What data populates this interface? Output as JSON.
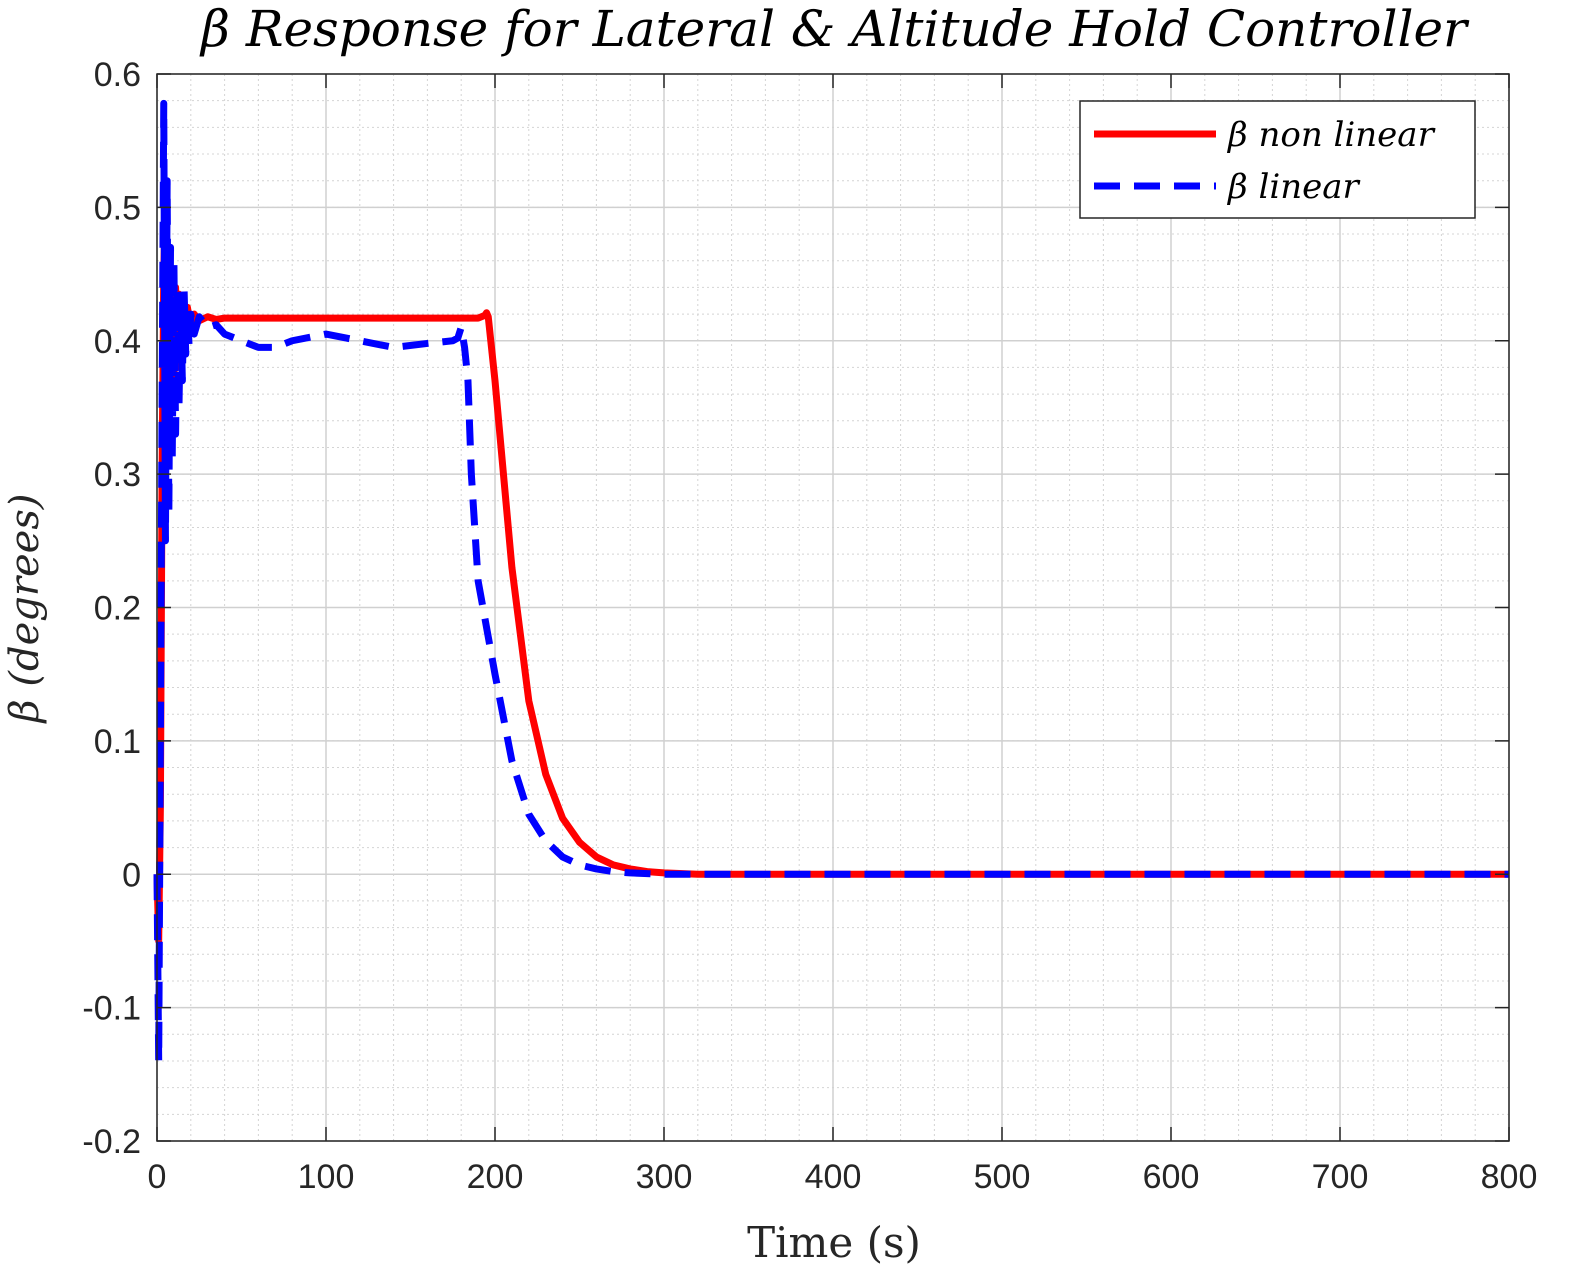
{
  "chart_data": {
    "type": "line",
    "title": "β Response for Lateral & Altitude Hold Controller",
    "xlabel": "Time (s)",
    "ylabel": "β (degrees)",
    "xlim": [
      0,
      800
    ],
    "ylim": [
      -0.2,
      0.6
    ],
    "xticks": [
      0,
      100,
      200,
      300,
      400,
      500,
      600,
      700,
      800
    ],
    "xtick_labels": [
      "0",
      "100",
      "200",
      "300",
      "400",
      "500",
      "600",
      "700",
      "800"
    ],
    "yticks": [
      -0.2,
      -0.1,
      0,
      0.1,
      0.2,
      0.3,
      0.4,
      0.5,
      0.6
    ],
    "ytick_labels": [
      "-0.2",
      "-0.1",
      "0",
      "0.1",
      "0.2",
      "0.3",
      "0.4",
      "0.5",
      "0.6"
    ],
    "grid": true,
    "minor_grid": true,
    "legend_position": "top-right",
    "series": [
      {
        "name": "β non linear",
        "color": "#ff0000",
        "style": "solid",
        "x": [
          0,
          1,
          2,
          3,
          4,
          5,
          6,
          7,
          8,
          9,
          10,
          11,
          12,
          13,
          14,
          15,
          16,
          18,
          20,
          22,
          25,
          30,
          35,
          40,
          60,
          100,
          150,
          190,
          194,
          195,
          196,
          200,
          205,
          210,
          220,
          230,
          240,
          250,
          260,
          270,
          280,
          290,
          300,
          320,
          350,
          400,
          500,
          600,
          700,
          800
        ],
        "y": [
          0,
          -0.05,
          0.05,
          0.3,
          0.45,
          0.51,
          0.35,
          0.46,
          0.36,
          0.45,
          0.37,
          0.44,
          0.38,
          0.435,
          0.395,
          0.43,
          0.4,
          0.425,
          0.41,
          0.42,
          0.415,
          0.418,
          0.416,
          0.417,
          0.417,
          0.417,
          0.417,
          0.417,
          0.419,
          0.421,
          0.418,
          0.37,
          0.3,
          0.23,
          0.13,
          0.075,
          0.042,
          0.024,
          0.013,
          0.007,
          0.004,
          0.002,
          0.001,
          0,
          0,
          0,
          0,
          0,
          0,
          0
        ]
      },
      {
        "name": "β linear",
        "color": "#0000ff",
        "style": "dashed",
        "x": [
          0,
          1,
          2,
          3,
          4,
          5,
          6,
          7,
          8,
          9,
          10,
          11,
          12,
          13,
          14,
          15,
          16,
          17,
          18,
          19,
          20,
          22,
          25,
          30,
          35,
          40,
          50,
          60,
          70,
          80,
          100,
          120,
          140,
          160,
          175,
          178,
          180,
          182,
          184,
          186,
          190,
          200,
          210,
          220,
          230,
          240,
          250,
          260,
          270,
          280,
          300,
          320,
          350,
          400,
          500,
          600,
          700,
          800
        ],
        "y": [
          0,
          -0.14,
          0.1,
          0.35,
          0.578,
          0.25,
          0.52,
          0.27,
          0.47,
          0.31,
          0.46,
          0.33,
          0.44,
          0.35,
          0.43,
          0.37,
          0.44,
          0.39,
          0.425,
          0.395,
          0.42,
          0.405,
          0.418,
          0.41,
          0.412,
          0.405,
          0.4,
          0.395,
          0.395,
          0.4,
          0.405,
          0.4,
          0.395,
          0.398,
          0.4,
          0.402,
          0.41,
          0.395,
          0.37,
          0.3,
          0.22,
          0.15,
          0.085,
          0.045,
          0.025,
          0.013,
          0.007,
          0.004,
          0.002,
          0.001,
          0,
          0,
          0,
          0,
          0,
          0,
          0,
          0
        ]
      }
    ]
  }
}
